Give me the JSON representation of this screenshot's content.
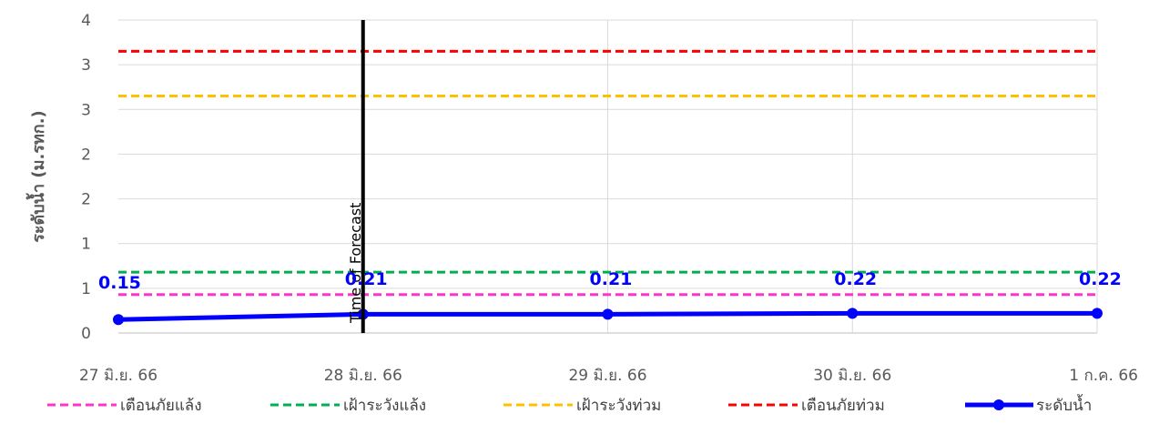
{
  "chart_data": {
    "type": "line",
    "categories": [
      "27 มิ.ย. 66",
      "28 มิ.ย. 66",
      "29 มิ.ย. 66",
      "30 มิ.ย. 66",
      "1 ก.ค. 66"
    ],
    "ylabel": "ระดับน้ำ (ม.รทก.)",
    "ylim": [
      0,
      3.5
    ],
    "y_tick_labels": [
      "0",
      "1",
      "1",
      "2",
      "2",
      "3",
      "3",
      "4"
    ],
    "grid": true,
    "legend_position": "bottom",
    "forecast_marker": {
      "label": "Time of Forecast",
      "category": "28 มิ.ย. 66"
    },
    "series": [
      {
        "name": "เตือนภัยแล้ง",
        "color": "#ff33cc",
        "style": "dashed",
        "values": [
          0.43,
          0.43,
          0.43,
          0.43,
          0.43
        ]
      },
      {
        "name": "เฝ้าระวังแล้ง",
        "color": "#00b050",
        "style": "dashed",
        "values": [
          0.68,
          0.68,
          0.68,
          0.68,
          0.68
        ]
      },
      {
        "name": "เฝ้าระวังท่วม",
        "color": "#ffc000",
        "style": "dashed",
        "values": [
          2.65,
          2.65,
          2.65,
          2.65,
          2.65
        ]
      },
      {
        "name": "เตือนภัยท่วม",
        "color": "#ff0000",
        "style": "dashed",
        "values": [
          3.15,
          3.15,
          3.15,
          3.15,
          3.15
        ]
      },
      {
        "name": "ระดับน้ำ",
        "color": "#0000ff",
        "style": "solid-markers",
        "values": [
          0.15,
          0.21,
          0.21,
          0.22,
          0.22
        ],
        "labels": [
          "0.15",
          "0.21",
          "0.21",
          "0.22",
          "0.22"
        ]
      }
    ]
  }
}
